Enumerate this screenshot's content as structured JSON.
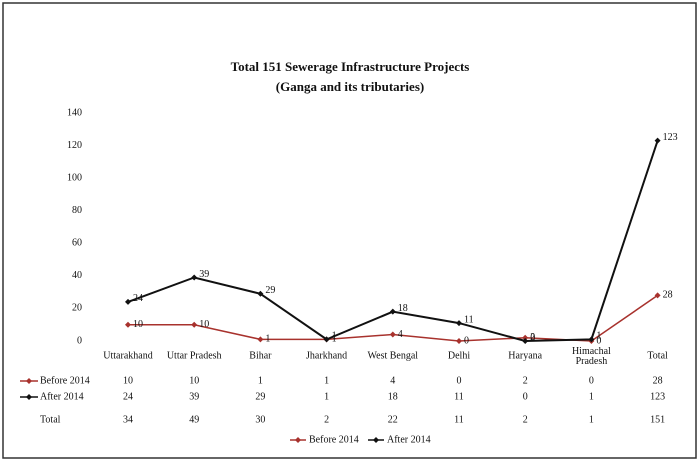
{
  "chart_data": {
    "type": "line",
    "title": "Total 151 Sewerage Infrastructure Projects",
    "subtitle": "(Ganga and its tributaries)",
    "categories": [
      "Uttarakhand",
      "Uttar Pradesh",
      "Bihar",
      "Jharkhand",
      "West Bengal",
      "Delhi",
      "Haryana",
      "Himachal Pradesh",
      "Total"
    ],
    "series": [
      {
        "name": "Before 2014",
        "color": "#a8322d",
        "values": [
          10,
          10,
          1,
          1,
          4,
          0,
          2,
          0,
          28
        ]
      },
      {
        "name": "After 2014",
        "color": "#111111",
        "values": [
          24,
          39,
          29,
          1,
          18,
          11,
          0,
          1,
          123
        ]
      }
    ],
    "table": {
      "total_label": "Total",
      "totals": [
        34,
        49,
        30,
        2,
        22,
        11,
        2,
        1,
        151
      ]
    },
    "ylim": [
      0,
      140
    ],
    "yticks": [
      0,
      20,
      40,
      60,
      80,
      100,
      120,
      140
    ],
    "legend": "bottom"
  }
}
